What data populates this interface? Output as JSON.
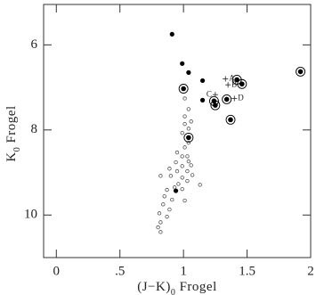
{
  "chart_data": {
    "type": "scatter",
    "xlabel_parts": [
      "(J−K)",
      "0",
      " Frogel"
    ],
    "ylabel_parts": [
      "K",
      "0",
      " Frogel"
    ],
    "xlim": [
      -0.1,
      2.0
    ],
    "ylim": [
      5.05,
      11
    ],
    "y_inverted": true,
    "xticks": [
      0,
      {
        "value": 0.5,
        "label": ".5"
      },
      1,
      1.5,
      2
    ],
    "yticks": [
      6,
      8,
      10
    ],
    "series": [
      {
        "marker": "open",
        "color": "#555",
        "x": [
          1.01,
          1.04,
          1.01,
          1.01,
          1.06,
          1.04,
          0.99,
          1.04,
          1.01,
          0.95,
          0.99,
          1.03,
          0.94,
          0.99,
          1.04,
          1.06,
          0.89,
          0.95,
          1.03,
          0.82,
          0.9,
          0.99,
          1.07,
          1.03,
          0.96,
          0.93,
          0.87,
          0.99,
          0.85,
          0.91,
          0.84,
          0.89,
          0.81,
          0.87,
          0.82,
          0.8,
          0.82,
          1.01,
          1.13
        ],
        "values": [
          7.26,
          7.51,
          7.68,
          7.86,
          7.8,
          7.97,
          8.07,
          8.3,
          8.41,
          8.53,
          8.62,
          8.62,
          8.76,
          8.85,
          8.74,
          8.83,
          8.91,
          8.97,
          8.97,
          9.08,
          9.08,
          9.12,
          9.06,
          9.2,
          9.27,
          9.35,
          9.41,
          9.39,
          9.56,
          9.64,
          9.75,
          9.87,
          9.96,
          10.04,
          10.17,
          10.29,
          10.4,
          9.66,
          9.29
        ]
      },
      {
        "marker": "filled",
        "color": "#000",
        "x": [
          0.91,
          0.99,
          1.04,
          1.15,
          1.15,
          0.94
        ],
        "values": [
          5.75,
          6.44,
          6.65,
          6.84,
          7.3,
          9.43
        ]
      },
      {
        "marker": "ringed",
        "color": "#000",
        "x": [
          1.0,
          1.24,
          1.25,
          1.42,
          1.46,
          1.34,
          1.37,
          1.04,
          1.92
        ],
        "values": [
          7.03,
          7.32,
          7.42,
          6.82,
          6.92,
          7.28,
          7.76,
          8.18,
          6.63
        ]
      }
    ],
    "annotations": [
      {
        "text": "A",
        "x": 1.33,
        "y": 6.8,
        "side": "right"
      },
      {
        "text": "B",
        "x": 1.35,
        "y": 6.94,
        "side": "right"
      },
      {
        "text": "C",
        "x": 1.25,
        "y": 7.17,
        "side": "left"
      },
      {
        "text": "D",
        "x": 1.4,
        "y": 7.26,
        "side": "right"
      }
    ]
  }
}
